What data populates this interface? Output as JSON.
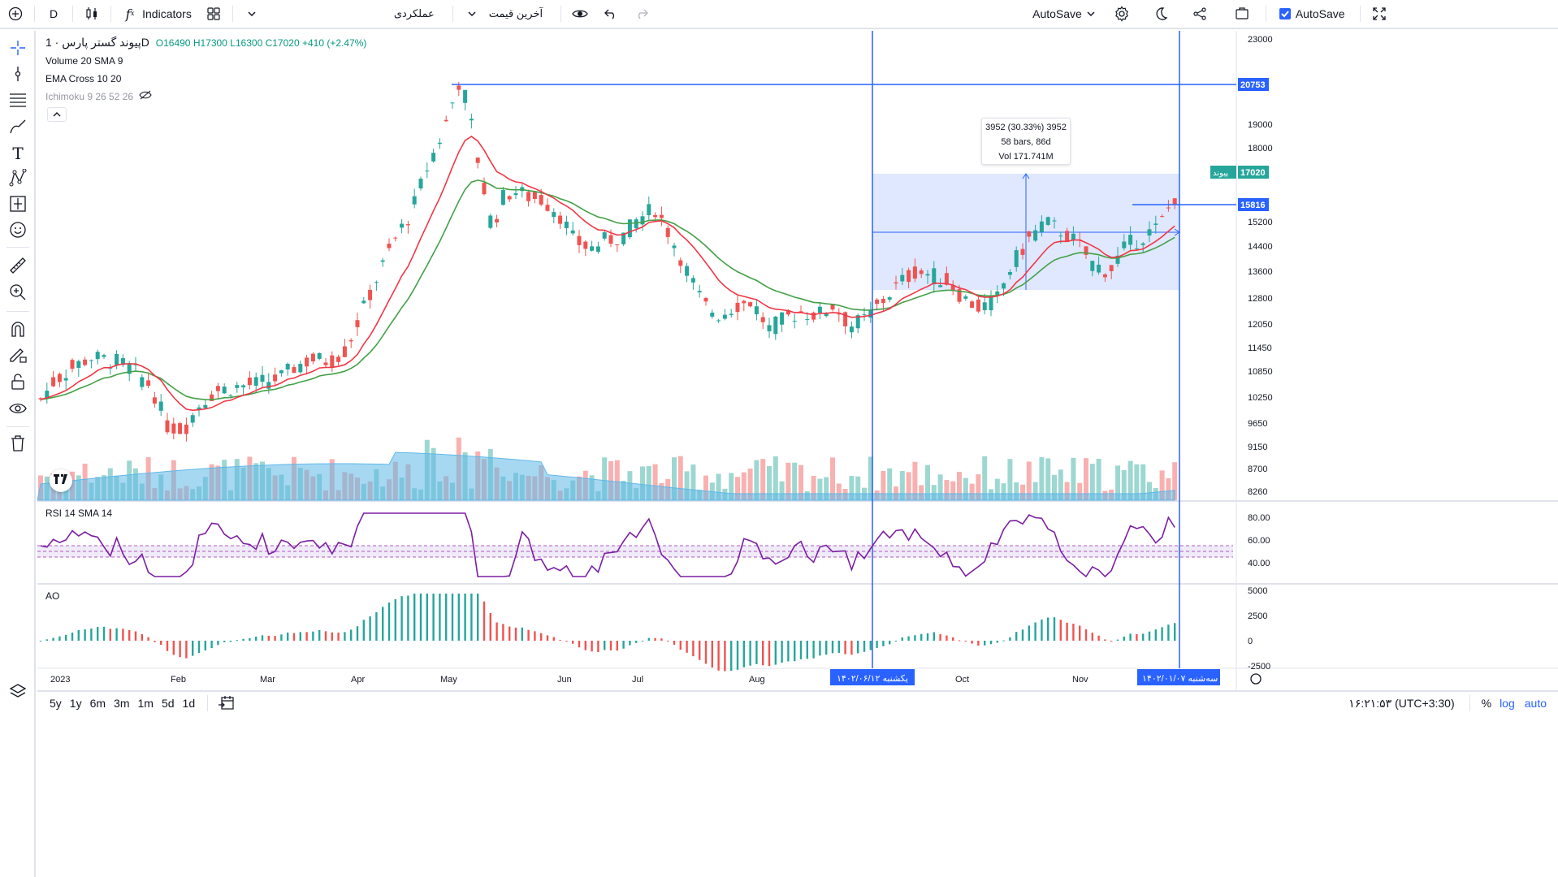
{
  "toolbar": {
    "interval": "D",
    "indicators_label": "Indicators",
    "performance_label": "عملکردی",
    "last_price_label": "آخرین قیمت",
    "autosave_dropdown": "AutoSave",
    "autosave_checkbox_label": "AutoSave",
    "autosave_checked": true
  },
  "legend": {
    "symbol": "پیوند گستر پارس",
    "interval": "· 1D",
    "open": "O16490",
    "high": "H17300",
    "low": "L16300",
    "close": "C17020",
    "change": "+410 (+2.47%)",
    "volume": "Volume 20 SMA 9",
    "ema": "EMA Cross 10 20",
    "ichimoku": "Ichimoku 9 26 52 26",
    "rsi": "RSI 14 SMA 14",
    "ao": "AO"
  },
  "measure": {
    "line1": "3952 (30.33%) 3952",
    "line2": "58 bars, 86d",
    "line3": "Vol 171.741M"
  },
  "price_axis": {
    "ticks": [
      "23000",
      "19000",
      "18000",
      "15200",
      "14400",
      "13600",
      "12800",
      "12050",
      "11450",
      "10850",
      "10250",
      "9650",
      "9150",
      "8700",
      "8260"
    ],
    "label_top_line": "20753",
    "label_last": "17020",
    "label_hline": "15816",
    "symbol_short": "پیوند"
  },
  "rsi_axis": [
    "80.00",
    "60.00",
    "40.00"
  ],
  "ao_axis": [
    "5000",
    "2500",
    "0",
    "-2500"
  ],
  "time_axis": {
    "labels": [
      "2023",
      "Feb",
      "Mar",
      "Apr",
      "May",
      "Jun",
      "Jul",
      "Aug",
      "Oct",
      "Nov"
    ],
    "marker_left": "یکشنبه ۱۴۰۲/۰۶/۱۲",
    "marker_right": "سه‌شنبه ۱۴۰۲/۰۱/۰۷"
  },
  "bottom": {
    "ranges": [
      "5y",
      "1y",
      "6m",
      "3m",
      "1m",
      "5d",
      "1d"
    ],
    "clock": "۱۶:۲۱:۵۳ (UTC+3:30)",
    "percent": "%",
    "log": "log",
    "auto": "auto"
  },
  "colors": {
    "up": "#26a69a",
    "down": "#ef5350",
    "ema_fast": "#f23645",
    "ema_slow": "#43a047",
    "rsi": "#7b1fa2",
    "blue": "#2962ff",
    "vol_area": "#5fb8e8"
  }
}
